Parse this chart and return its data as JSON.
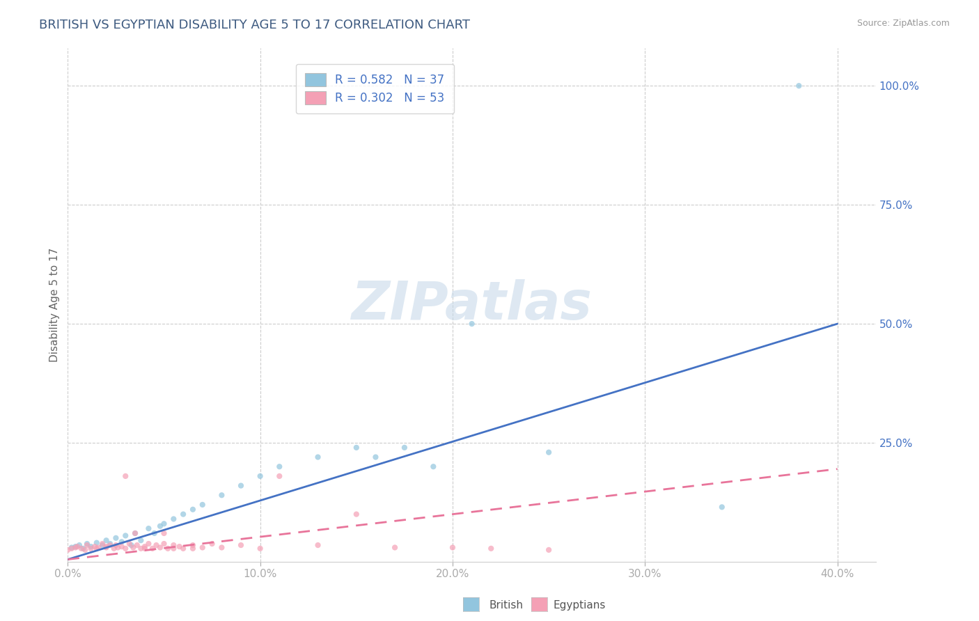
{
  "title": "BRITISH VS EGYPTIAN DISABILITY AGE 5 TO 17 CORRELATION CHART",
  "source": "Source: ZipAtlas.com",
  "ylabel": "Disability Age 5 to 17",
  "xlim": [
    0.0,
    0.42
  ],
  "ylim": [
    0.0,
    1.08
  ],
  "xtick_labels": [
    "0.0%",
    "",
    "10.0%",
    "",
    "20.0%",
    "",
    "30.0%",
    "",
    "40.0%"
  ],
  "xtick_vals": [
    0.0,
    0.05,
    0.1,
    0.15,
    0.2,
    0.25,
    0.3,
    0.35,
    0.4
  ],
  "xtick_display": [
    "0.0%",
    "10.0%",
    "20.0%",
    "30.0%",
    "40.0%"
  ],
  "xtick_display_vals": [
    0.0,
    0.1,
    0.2,
    0.3,
    0.4
  ],
  "ytick_labels": [
    "25.0%",
    "50.0%",
    "75.0%",
    "100.0%"
  ],
  "ytick_vals": [
    0.25,
    0.5,
    0.75,
    1.0
  ],
  "title_color": "#3d5a80",
  "title_fontsize": 13,
  "british_color": "#92c5de",
  "egyptian_color": "#f4a0b5",
  "british_line_color": "#4472c4",
  "egyptian_line_color": "#e8749a",
  "legend_label_british": "R = 0.582   N = 37",
  "legend_label_egyptian": "R = 0.302   N = 53",
  "british_scatter_x": [
    0.002,
    0.004,
    0.006,
    0.008,
    0.01,
    0.012,
    0.015,
    0.018,
    0.02,
    0.022,
    0.025,
    0.028,
    0.03,
    0.033,
    0.035,
    0.038,
    0.042,
    0.045,
    0.048,
    0.05,
    0.055,
    0.06,
    0.065,
    0.07,
    0.08,
    0.09,
    0.1,
    0.11,
    0.13,
    0.15,
    0.16,
    0.175,
    0.19,
    0.21,
    0.25,
    0.34,
    0.38
  ],
  "british_scatter_y": [
    0.03,
    0.032,
    0.035,
    0.028,
    0.038,
    0.032,
    0.04,
    0.035,
    0.045,
    0.038,
    0.05,
    0.042,
    0.055,
    0.035,
    0.06,
    0.045,
    0.07,
    0.06,
    0.075,
    0.08,
    0.09,
    0.1,
    0.11,
    0.12,
    0.14,
    0.16,
    0.18,
    0.2,
    0.22,
    0.24,
    0.22,
    0.24,
    0.2,
    0.5,
    0.23,
    0.115,
    1.0
  ],
  "egyptian_scatter_x": [
    0.0,
    0.002,
    0.004,
    0.005,
    0.007,
    0.009,
    0.01,
    0.012,
    0.014,
    0.016,
    0.018,
    0.02,
    0.022,
    0.024,
    0.026,
    0.028,
    0.03,
    0.032,
    0.034,
    0.036,
    0.038,
    0.04,
    0.042,
    0.044,
    0.046,
    0.048,
    0.05,
    0.052,
    0.055,
    0.058,
    0.06,
    0.065,
    0.07,
    0.075,
    0.08,
    0.09,
    0.1,
    0.11,
    0.13,
    0.15,
    0.17,
    0.2,
    0.22,
    0.25,
    0.03,
    0.05,
    0.025,
    0.035,
    0.015,
    0.02,
    0.04,
    0.055,
    0.065
  ],
  "egyptian_scatter_y": [
    0.025,
    0.028,
    0.03,
    0.032,
    0.028,
    0.025,
    0.035,
    0.028,
    0.032,
    0.03,
    0.038,
    0.032,
    0.035,
    0.028,
    0.03,
    0.032,
    0.028,
    0.038,
    0.03,
    0.035,
    0.028,
    0.032,
    0.038,
    0.028,
    0.035,
    0.03,
    0.038,
    0.028,
    0.035,
    0.032,
    0.028,
    0.035,
    0.03,
    0.038,
    0.03,
    0.035,
    0.028,
    0.18,
    0.035,
    0.1,
    0.03,
    0.03,
    0.028,
    0.025,
    0.18,
    0.06,
    0.035,
    0.06,
    0.028,
    0.03,
    0.028,
    0.028,
    0.028
  ],
  "british_trend_x": [
    0.0,
    0.4
  ],
  "british_trend_y": [
    0.005,
    0.5
  ],
  "egyptian_trend_x": [
    0.0,
    0.4
  ],
  "egyptian_trend_y": [
    0.005,
    0.195
  ],
  "watermark": "ZIPatlas",
  "watermark_color": "#c8daea",
  "background_color": "#FFFFFF",
  "grid_color": "#cccccc",
  "legend_fontsize": 12,
  "axis_fontsize": 11,
  "scatter_size": 35,
  "scatter_alpha": 0.7,
  "legend_value_color": "#4472c4",
  "bottom_legend_british": "British",
  "bottom_legend_egyptian": "Egyptians"
}
